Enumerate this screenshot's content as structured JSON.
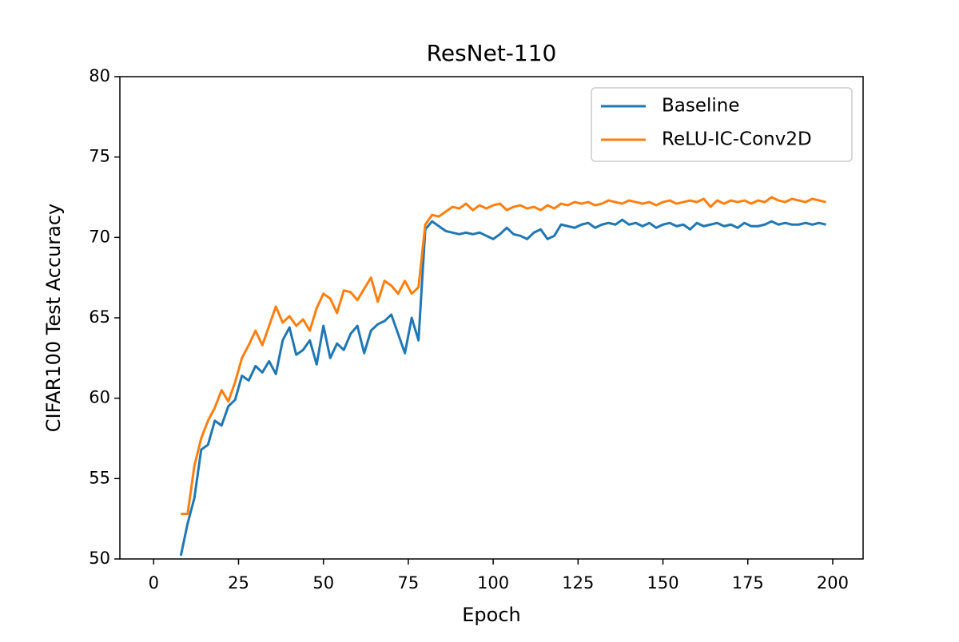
{
  "chart_data": {
    "type": "line",
    "title": "ResNet-110",
    "xlabel": "Epoch",
    "ylabel": "CIFAR100 Test Accuracy",
    "x": [
      8,
      10,
      12,
      14,
      16,
      18,
      20,
      22,
      24,
      26,
      28,
      30,
      32,
      34,
      36,
      38,
      40,
      42,
      44,
      46,
      48,
      50,
      52,
      54,
      56,
      58,
      60,
      62,
      64,
      66,
      68,
      70,
      72,
      74,
      76,
      78,
      80,
      82,
      84,
      86,
      88,
      90,
      92,
      94,
      96,
      98,
      100,
      102,
      104,
      106,
      108,
      110,
      112,
      114,
      116,
      118,
      120,
      122,
      124,
      126,
      128,
      130,
      132,
      134,
      136,
      138,
      140,
      142,
      144,
      146,
      148,
      150,
      152,
      154,
      156,
      158,
      160,
      162,
      164,
      166,
      168,
      170,
      172,
      174,
      176,
      178,
      180,
      182,
      184,
      186,
      188,
      190,
      192,
      194,
      196,
      198
    ],
    "series": [
      {
        "name": "Baseline",
        "color": "#1f77b4",
        "values": [
          50.2,
          52.2,
          53.8,
          56.8,
          57.1,
          58.6,
          58.3,
          59.5,
          59.9,
          61.4,
          61.1,
          62.0,
          61.6,
          62.3,
          61.5,
          63.6,
          64.4,
          62.7,
          63.0,
          63.6,
          62.1,
          64.5,
          62.5,
          63.4,
          63.0,
          64.0,
          64.5,
          62.8,
          64.2,
          64.6,
          64.8,
          65.2,
          64.0,
          62.8,
          65.0,
          63.6,
          70.5,
          71.0,
          70.7,
          70.4,
          70.3,
          70.2,
          70.3,
          70.2,
          70.3,
          70.1,
          69.9,
          70.2,
          70.6,
          70.2,
          70.1,
          69.9,
          70.3,
          70.5,
          69.9,
          70.1,
          70.8,
          70.7,
          70.6,
          70.8,
          70.9,
          70.6,
          70.8,
          70.9,
          70.8,
          71.1,
          70.8,
          70.9,
          70.7,
          70.9,
          70.6,
          70.8,
          70.9,
          70.7,
          70.8,
          70.5,
          70.9,
          70.7,
          70.8,
          70.9,
          70.7,
          70.8,
          70.6,
          70.9,
          70.7,
          70.7,
          70.8,
          71.0,
          70.8,
          70.9,
          70.8,
          70.8,
          70.9,
          70.8,
          70.9,
          70.8
        ]
      },
      {
        "name": "ReLU-IC-Conv2D",
        "color": "#ff7f0e",
        "values": [
          52.8,
          52.8,
          55.8,
          57.5,
          58.6,
          59.4,
          60.5,
          59.8,
          61.0,
          62.5,
          63.3,
          64.2,
          63.3,
          64.5,
          65.7,
          64.7,
          65.1,
          64.5,
          64.9,
          64.2,
          65.6,
          66.5,
          66.2,
          65.3,
          66.7,
          66.6,
          66.1,
          66.8,
          67.5,
          66.0,
          67.3,
          67.0,
          66.5,
          67.3,
          66.5,
          66.9,
          70.8,
          71.4,
          71.3,
          71.6,
          71.9,
          71.8,
          72.1,
          71.7,
          72.0,
          71.8,
          72.0,
          72.1,
          71.7,
          71.9,
          72.0,
          71.8,
          71.9,
          71.7,
          72.0,
          71.8,
          72.1,
          72.0,
          72.2,
          72.1,
          72.2,
          72.0,
          72.1,
          72.3,
          72.2,
          72.1,
          72.3,
          72.2,
          72.1,
          72.2,
          72.0,
          72.2,
          72.3,
          72.1,
          72.2,
          72.3,
          72.2,
          72.4,
          71.9,
          72.3,
          72.1,
          72.3,
          72.2,
          72.3,
          72.1,
          72.3,
          72.2,
          72.5,
          72.3,
          72.2,
          72.4,
          72.3,
          72.2,
          72.4,
          72.3,
          72.2
        ]
      }
    ],
    "xlim": [
      -9.95,
      208.95
    ],
    "ylim": [
      50,
      80
    ],
    "xticks": [
      0,
      25,
      50,
      75,
      100,
      125,
      150,
      175,
      200
    ],
    "yticks": [
      50,
      55,
      60,
      65,
      70,
      75,
      80
    ],
    "legend": "upper right"
  }
}
